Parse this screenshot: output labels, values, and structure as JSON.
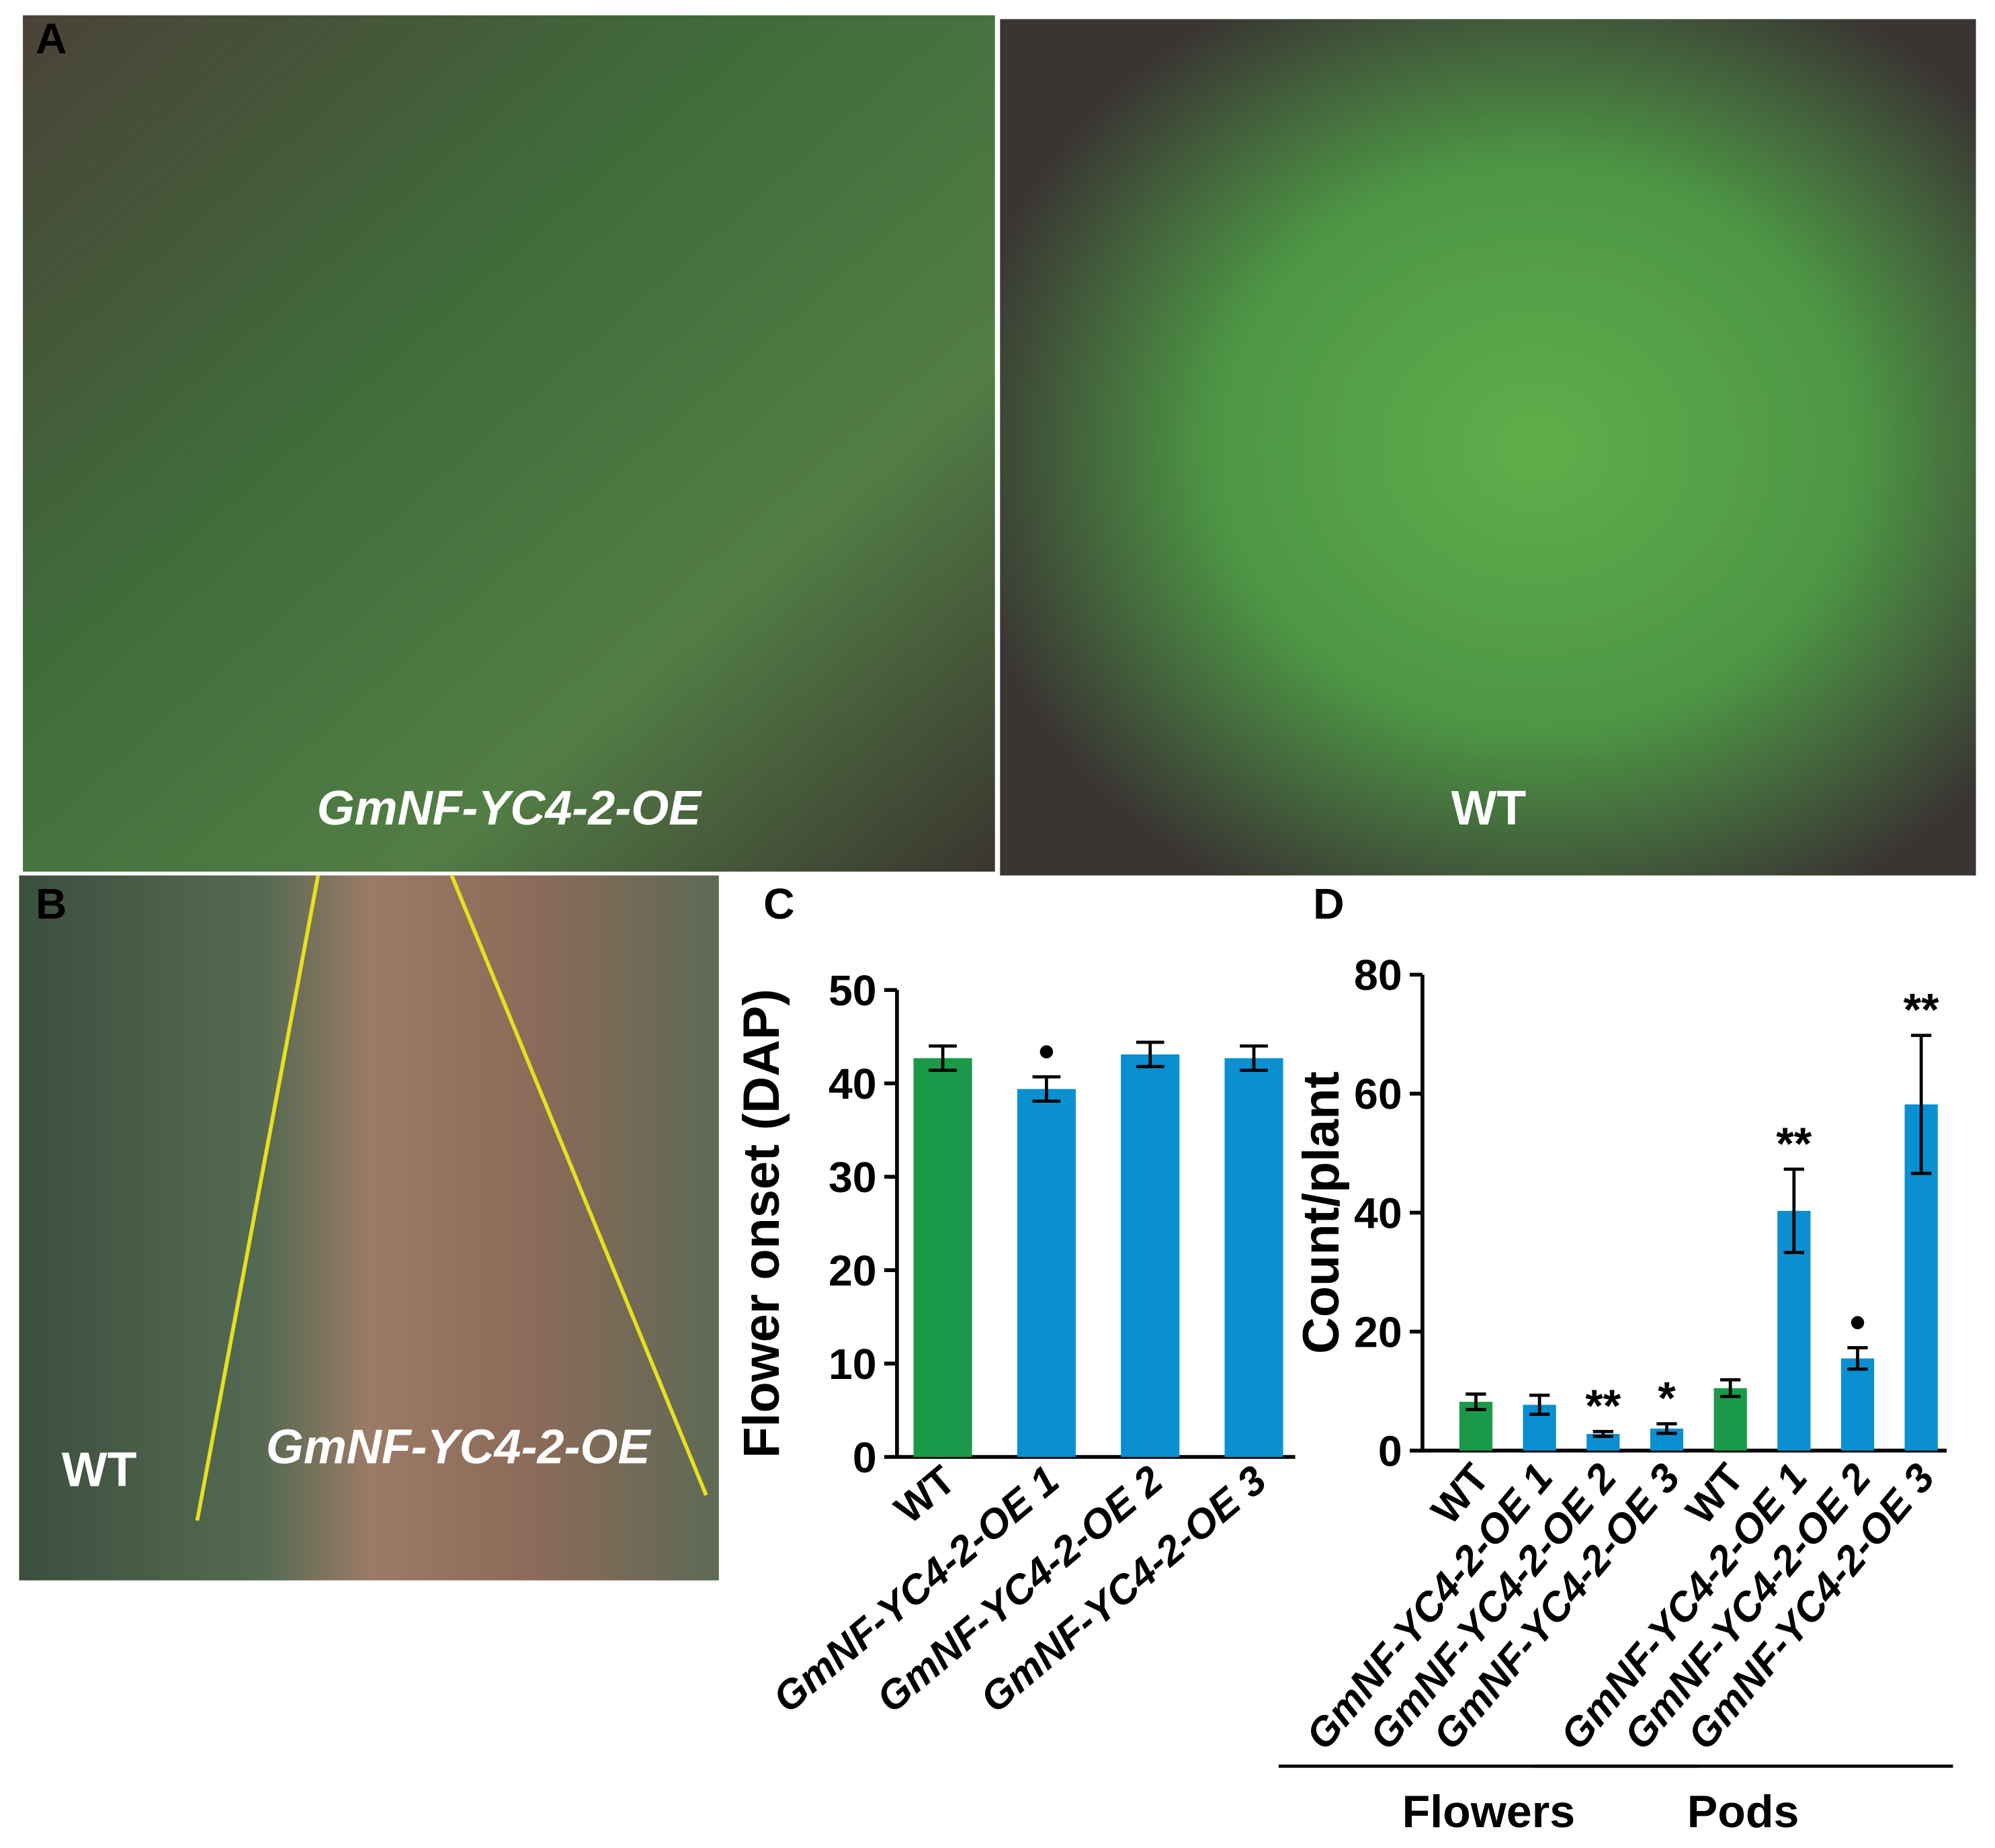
{
  "photos": [
    {
      "letter": "A",
      "labels": [
        "GmNF-YC4-2-OE",
        "WT"
      ]
    },
    {
      "letter": "B",
      "labels": [
        "WT",
        "GmNF-YC4-2-OE"
      ]
    }
  ],
  "chart_data": [
    {
      "type": "bar",
      "letter": "C",
      "ylabel": "Flower onset (DAP)",
      "categories": [
        "WT",
        "GmNF-YC4-2-OE 1",
        "GmNF-YC4-2-OE 2",
        "GmNF-YC4-2-OE 3"
      ],
      "values": [
        42.7,
        39.4,
        43.1,
        42.7
      ],
      "errors": [
        1.3,
        1.3,
        1.3,
        1.3
      ],
      "colors": [
        "#1a9a48",
        "#0a8fd0",
        "#0a8fd0",
        "#0a8fd0"
      ],
      "significance": [
        null,
        "•",
        null,
        null
      ],
      "ylim": [
        0,
        50
      ],
      "yticks": [
        0,
        10,
        20,
        30,
        40,
        50
      ]
    },
    {
      "type": "bar",
      "letter": "D",
      "ylabel": "Count/plant",
      "categories": [
        "WT",
        "GmNF-YC4-2-OE 1",
        "GmNF-YC4-2-OE 2",
        "GmNF-YC4-2-OE 3",
        "WT",
        "GmNF-YC4-2-OE 1",
        "GmNF-YC4-2-OE 2",
        "GmNF-YC4-2-OE 3"
      ],
      "values": [
        8.2,
        7.7,
        2.8,
        3.7,
        10.5,
        40.3,
        15.5,
        58.2
      ],
      "errors": [
        1.3,
        1.6,
        0.4,
        0.8,
        1.4,
        7.0,
        1.8,
        11.6
      ],
      "colors": [
        "#1a9a48",
        "#0a8fd0",
        "#0a8fd0",
        "#0a8fd0",
        "#1a9a48",
        "#0a8fd0",
        "#0a8fd0",
        "#0a8fd0"
      ],
      "significance": [
        null,
        null,
        "**",
        "*",
        null,
        "**",
        "•",
        "**"
      ],
      "groups": [
        "Flowers",
        "Pods"
      ],
      "ylim": [
        0,
        80
      ],
      "yticks": [
        0,
        20,
        40,
        60,
        80
      ]
    }
  ]
}
